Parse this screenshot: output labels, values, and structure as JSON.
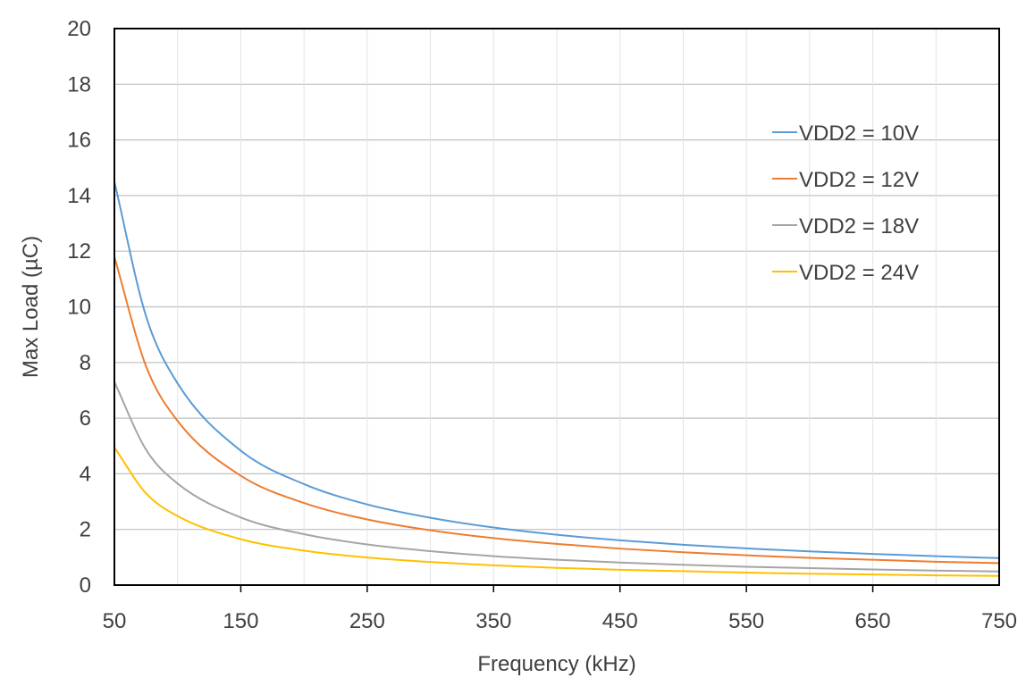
{
  "chart_data": {
    "type": "line",
    "title": "",
    "xlabel": "Frequency (kHz)",
    "ylabel": "Max Load (µC)",
    "xlim": [
      50,
      750
    ],
    "ylim": [
      0,
      20
    ],
    "x_ticks": [
      "50",
      "150",
      "250",
      "350",
      "450",
      "550",
      "650",
      "750"
    ],
    "y_ticks": [
      "0",
      "2",
      "4",
      "6",
      "8",
      "10",
      "12",
      "14",
      "16",
      "18",
      "20"
    ],
    "grid": "both",
    "legend_position": "right",
    "x": [
      50,
      75,
      100,
      150,
      200,
      250,
      300,
      350,
      400,
      450,
      500,
      550,
      600,
      650,
      700,
      750
    ],
    "series": [
      {
        "name": "VDD2 = 10V",
        "color": "#5B9BD5",
        "values": [
          14.5,
          9.67,
          7.25,
          4.83,
          3.63,
          2.9,
          2.42,
          2.07,
          1.81,
          1.61,
          1.45,
          1.32,
          1.21,
          1.12,
          1.04,
          0.97
        ]
      },
      {
        "name": "VDD2 = 12V",
        "color": "#ED7D31",
        "values": [
          11.8,
          7.87,
          5.9,
          3.93,
          2.95,
          2.36,
          1.97,
          1.69,
          1.48,
          1.31,
          1.18,
          1.07,
          0.98,
          0.91,
          0.84,
          0.79
        ]
      },
      {
        "name": "VDD2 = 18V",
        "color": "#A5A5A5",
        "values": [
          7.3,
          4.87,
          3.65,
          2.43,
          1.83,
          1.46,
          1.22,
          1.04,
          0.91,
          0.81,
          0.73,
          0.66,
          0.61,
          0.56,
          0.52,
          0.49
        ]
      },
      {
        "name": "VDD2 = 24V",
        "color": "#FFC000",
        "values": [
          4.95,
          3.3,
          2.48,
          1.65,
          1.24,
          0.99,
          0.83,
          0.71,
          0.62,
          0.55,
          0.5,
          0.45,
          0.41,
          0.38,
          0.35,
          0.33
        ]
      }
    ]
  }
}
